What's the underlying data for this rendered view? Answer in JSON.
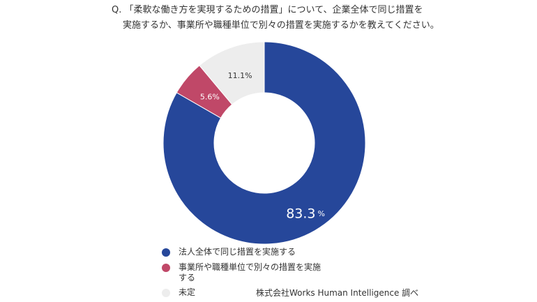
{
  "question": {
    "line1": "Q. 「柔軟な働き方を実現するための措置」について、企業全体で同じ措置を",
    "line2": "実施するか、事業所や職種単位で別々の措置を実施するかを教えてください。"
  },
  "chart_data": {
    "type": "pie",
    "donut": true,
    "title": "Q. 「柔軟な働き方を実現するための措置」について、企業全体で同じ措置を実施するか、事業所や職種単位で別々の措置を実施するかを教えてください。",
    "categories": [
      "法人全体で同じ措置を実施する",
      "事業所や職種単位で別々の措置を実施する",
      "未定"
    ],
    "values": [
      83.3,
      5.6,
      11.1
    ],
    "data_labels": [
      "83.3",
      "5.6%",
      "11.1%"
    ],
    "unit": "%",
    "colors": [
      "#26479a",
      "#c04868",
      "#ededed"
    ],
    "label_colors": [
      "#ffffff",
      "#ffffff",
      "#333333"
    ],
    "legend_position": "bottom"
  },
  "legend": [
    {
      "line1": "法人全体で同じ措置を実施する",
      "line2": "",
      "color": "#26479a"
    },
    {
      "line1": "事業所や職種単位で別々の措置を実施",
      "line2": "する",
      "color": "#c04868"
    },
    {
      "line1": "未定",
      "line2": "",
      "color": "#ededed"
    }
  ],
  "source": "株式会社Works Human Intelligence 調べ"
}
